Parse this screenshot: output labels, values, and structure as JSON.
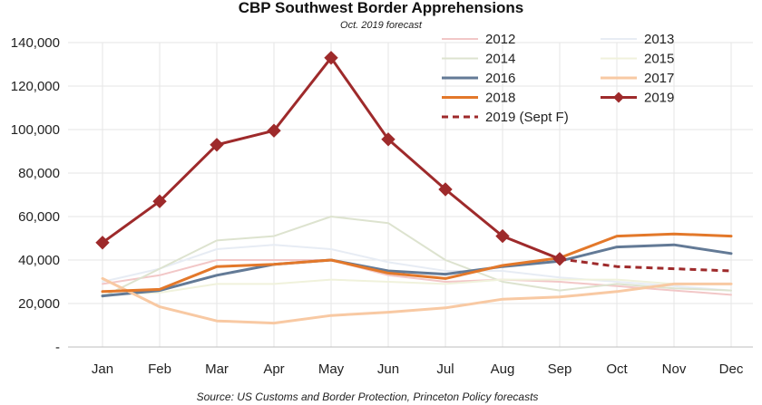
{
  "chart_data": {
    "type": "line",
    "title": "CBP Southwest Border Apprehensions",
    "subtitle": "Oct. 2019 forecast",
    "source": "Source: US Customs and Border Protection, Princeton Policy forecasts",
    "categories": [
      "Jan",
      "Feb",
      "Mar",
      "Apr",
      "May",
      "Jun",
      "Jul",
      "Aug",
      "Sep",
      "Oct",
      "Nov",
      "Dec"
    ],
    "ylim": [
      0,
      140000
    ],
    "yticks": [
      {
        "value": 0,
        "label": "-"
      },
      {
        "value": 20000,
        "label": "20,000"
      },
      {
        "value": 40000,
        "label": "40,000"
      },
      {
        "value": 60000,
        "label": "60,000"
      },
      {
        "value": 80000,
        "label": "80,000"
      },
      {
        "value": 100000,
        "label": "100,000"
      },
      {
        "value": 120000,
        "label": "120,000"
      },
      {
        "value": 140000,
        "label": "140,000"
      }
    ],
    "grid": true,
    "legend_position": "top-right",
    "series": [
      {
        "name": "2012",
        "color": "#f2c7c7",
        "width": 2,
        "style": "solid",
        "markers": false,
        "values": [
          29000,
          33000,
          40000,
          40000,
          40000,
          33000,
          30000,
          31000,
          30000,
          28000,
          26000,
          24000
        ]
      },
      {
        "name": "2013",
        "color": "#e7ecf4",
        "width": 2,
        "style": "solid",
        "markers": false,
        "values": [
          30000,
          36000,
          45000,
          47000,
          45000,
          39000,
          35000,
          35000,
          32000,
          30000,
          28000,
          26000
        ]
      },
      {
        "name": "2014",
        "color": "#dde3cf",
        "width": 2,
        "style": "solid",
        "markers": false,
        "values": [
          23000,
          36000,
          49000,
          51000,
          60000,
          57000,
          40000,
          30000,
          26000,
          29000,
          27000,
          26000
        ]
      },
      {
        "name": "2015",
        "color": "#f0f2dc",
        "width": 2,
        "style": "solid",
        "markers": false,
        "values": [
          24000,
          25000,
          29000,
          29000,
          31000,
          30000,
          29000,
          31000,
          31000,
          31000,
          29000,
          29000
        ]
      },
      {
        "name": "2016",
        "color": "#637a96",
        "width": 3,
        "style": "solid",
        "markers": false,
        "values": [
          23500,
          26000,
          33000,
          38000,
          40000,
          35000,
          33500,
          37000,
          39500,
          46000,
          47000,
          43000
        ]
      },
      {
        "name": "2017",
        "color": "#f8c9a3",
        "width": 3,
        "style": "solid",
        "markers": false,
        "values": [
          31500,
          18500,
          12000,
          11000,
          14500,
          16000,
          18000,
          22000,
          23000,
          25500,
          29000,
          29000
        ]
      },
      {
        "name": "2018",
        "color": "#e3782a",
        "width": 3,
        "style": "solid",
        "markers": false,
        "values": [
          25500,
          26500,
          37000,
          38000,
          40000,
          34000,
          31500,
          37500,
          41000,
          51000,
          52000,
          51000
        ]
      },
      {
        "name": "2019",
        "color": "#9e2a2b",
        "width": 3,
        "style": "solid",
        "markers": true,
        "values": [
          48000,
          67000,
          93000,
          99500,
          133000,
          95500,
          72500,
          51000,
          40500,
          null,
          null,
          null
        ]
      },
      {
        "name": "2019 (Sept F)",
        "color": "#9e2a2b",
        "width": 3,
        "style": "dashed",
        "markers": false,
        "values": [
          null,
          null,
          null,
          null,
          null,
          null,
          null,
          null,
          40500,
          37000,
          36000,
          35000
        ]
      }
    ]
  }
}
